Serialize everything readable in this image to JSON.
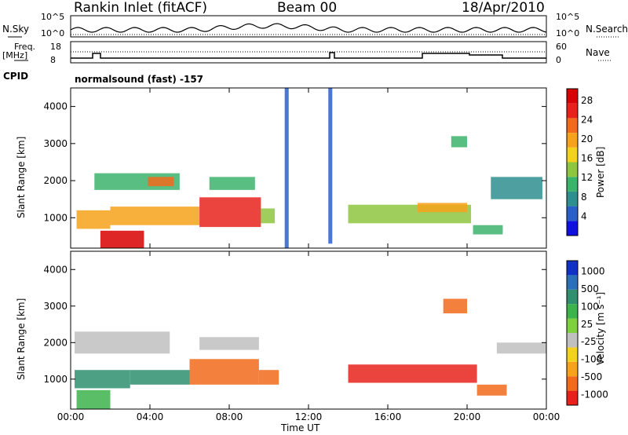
{
  "header": {
    "station": "Rankin Inlet (fitACF)",
    "beam": "Beam 00",
    "date": "18/Apr/2010"
  },
  "strip": {
    "nsky_label": "N.Sky",
    "nsky_ticks": [
      "10^5",
      "10^0"
    ],
    "nsearch_label": "N.Search",
    "nsearch_ticks": [
      "10^5",
      "10^0"
    ],
    "freq_label": "Freq.",
    "freq_unit": "[MHz]",
    "freq_ticks": [
      "18",
      "8"
    ],
    "nave_label": "Nave",
    "nave_ticks": [
      "60",
      "0"
    ],
    "cpid_label": "CPID",
    "cpid_value": "normalsound (fast) -157"
  },
  "chart_data": [
    {
      "type": "heatmap",
      "parameter": "Power",
      "ylabel": "Slant Range [km]",
      "xlabel": "",
      "x_ticks": [
        "00:00",
        "04:00",
        "08:00",
        "12:00",
        "16:00",
        "20:00",
        "00:00"
      ],
      "y_ticks": [
        1000,
        2000,
        3000,
        4000
      ],
      "ylim": [
        180,
        4500
      ],
      "xlim_hours": [
        0,
        24
      ],
      "colorbar": {
        "label": "Power [dB]",
        "ticks": [
          "4",
          "8",
          "12",
          "16",
          "20",
          "24",
          "28"
        ],
        "range": [
          0,
          30
        ],
        "colors": [
          "#1010e0",
          "#2a5fc8",
          "#2f8f8f",
          "#3cb36b",
          "#8ec63f",
          "#f2d21b",
          "#f7a21b",
          "#f26a1b",
          "#e8221b",
          "#d80000"
        ]
      },
      "regions": [
        {
          "t0": 0.3,
          "t1": 2.0,
          "r0": 700,
          "r1": 1200,
          "value": 18
        },
        {
          "t0": 2.0,
          "t1": 6.5,
          "r0": 800,
          "r1": 1300,
          "value": 20
        },
        {
          "t0": 6.5,
          "t1": 9.6,
          "r0": 750,
          "r1": 1550,
          "value": 26
        },
        {
          "t0": 9.6,
          "t1": 10.3,
          "r0": 850,
          "r1": 1250,
          "value": 14
        },
        {
          "t0": 1.5,
          "t1": 3.7,
          "r0": 180,
          "r1": 650,
          "value": 29
        },
        {
          "t0": 1.2,
          "t1": 5.5,
          "r0": 1750,
          "r1": 2200,
          "value": 11
        },
        {
          "t0": 3.9,
          "t1": 5.2,
          "r0": 1850,
          "r1": 2100,
          "value": 22
        },
        {
          "t0": 7.0,
          "t1": 9.3,
          "r0": 1750,
          "r1": 2100,
          "value": 9
        },
        {
          "t0": 14.0,
          "t1": 20.2,
          "r0": 850,
          "r1": 1350,
          "value": 13
        },
        {
          "t0": 17.5,
          "t1": 20.0,
          "r0": 1150,
          "r1": 1400,
          "value": 19
        },
        {
          "t0": 20.3,
          "t1": 21.8,
          "r0": 550,
          "r1": 800,
          "value": 10
        },
        {
          "t0": 21.2,
          "t1": 23.8,
          "r0": 1500,
          "r1": 2100,
          "value": 8
        },
        {
          "t0": 19.2,
          "t1": 20.0,
          "r0": 2900,
          "r1": 3200,
          "value": 10
        },
        {
          "t0": 10.8,
          "t1": 11.0,
          "r0": 180,
          "r1": 4500,
          "value": 5
        },
        {
          "t0": 13.0,
          "t1": 13.2,
          "r0": 300,
          "r1": 4500,
          "value": 5
        }
      ]
    },
    {
      "type": "heatmap",
      "parameter": "Velocity",
      "ylabel": "Slant Range [km]",
      "xlabel": "Time UT",
      "x_ticks": [
        "00:00",
        "04:00",
        "08:00",
        "12:00",
        "16:00",
        "20:00",
        "00:00"
      ],
      "y_ticks": [
        1000,
        2000,
        3000,
        4000
      ],
      "ylim": [
        180,
        4500
      ],
      "xlim_hours": [
        0,
        24
      ],
      "colorbar": {
        "label": "Velocity [m s⁻¹]",
        "ticks": [
          "1000",
          "500",
          "100",
          "25",
          "-25",
          "-100",
          "-500",
          "-1000"
        ],
        "colors": [
          "#1030c8",
          "#2a6fb8",
          "#2f8f6f",
          "#3cb34b",
          "#7fd03f",
          "#c0c0c0",
          "#f2d21b",
          "#f7a21b",
          "#f26a1b",
          "#e8221b"
        ]
      },
      "regions": [
        {
          "t0": 0.2,
          "t1": 3.0,
          "r0": 750,
          "r1": 1250,
          "value": 300
        },
        {
          "t0": 3.0,
          "t1": 6.0,
          "r0": 850,
          "r1": 1250,
          "value": 150
        },
        {
          "t0": 6.0,
          "t1": 9.5,
          "r0": 850,
          "r1": 1550,
          "value": -200
        },
        {
          "t0": 9.5,
          "t1": 10.5,
          "r0": 850,
          "r1": 1250,
          "value": -150
        },
        {
          "t0": 0.3,
          "t1": 2.0,
          "r0": 180,
          "r1": 700,
          "value": 50
        },
        {
          "t0": 0.2,
          "t1": 5.0,
          "r0": 1700,
          "r1": 2300,
          "value": 0
        },
        {
          "t0": 6.5,
          "t1": 9.5,
          "r0": 1800,
          "r1": 2150,
          "value": 0
        },
        {
          "t0": 14.0,
          "t1": 20.5,
          "r0": 900,
          "r1": 1400,
          "value": -600
        },
        {
          "t0": 20.5,
          "t1": 22.0,
          "r0": 550,
          "r1": 850,
          "value": -300
        },
        {
          "t0": 21.5,
          "t1": 24.0,
          "r0": 1700,
          "r1": 2000,
          "value": 0
        },
        {
          "t0": 18.8,
          "t1": 20.0,
          "r0": 2800,
          "r1": 3200,
          "value": -300
        }
      ]
    }
  ]
}
